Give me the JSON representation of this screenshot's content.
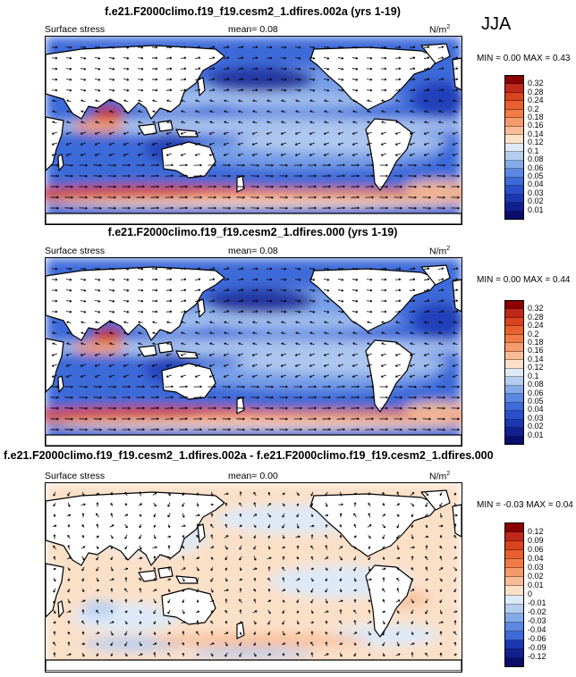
{
  "season": "JJA",
  "units": "N/m",
  "units_sup": "2",
  "panels": [
    {
      "title": "f.e21.F2000climo.f19_f19.cesm2_1.dfires.002a (yrs 1-19)",
      "field": "Surface stress",
      "mean": "mean=  0.08",
      "minmax": "MIN =  0.00 MAX =  0.43",
      "levels": [
        "0.32",
        "0.28",
        "0.24",
        "0.2",
        "0.18",
        "0.16",
        "0.14",
        "0.12",
        "0.1",
        "0.08",
        "0.06",
        "0.05",
        "0.04",
        "0.03",
        "0.02",
        "0.01"
      ],
      "colors": [
        "#8b0000",
        "#c0281a",
        "#d9431f",
        "#e8602f",
        "#f07b46",
        "#f49a6c",
        "#f8bd98",
        "#fbe0c8",
        "#dde9f7",
        "#b4ccf0",
        "#84aaea",
        "#5a88e3",
        "#3e6bd9",
        "#2a4fc9",
        "#1c37b0",
        "#12208f",
        "#0a0d6b"
      ],
      "kind": "magnitude"
    },
    {
      "title": "f.e21.F2000climo.f19_f19.cesm2_1.dfires.000 (yrs 1-19)",
      "field": "Surface stress",
      "mean": "mean=  0.08",
      "minmax": "MIN =  0.00 MAX =  0.44",
      "levels": [
        "0.32",
        "0.28",
        "0.24",
        "0.2",
        "0.18",
        "0.16",
        "0.14",
        "0.12",
        "0.1",
        "0.08",
        "0.06",
        "0.05",
        "0.04",
        "0.03",
        "0.02",
        "0.01"
      ],
      "colors": [
        "#8b0000",
        "#c0281a",
        "#d9431f",
        "#e8602f",
        "#f07b46",
        "#f49a6c",
        "#f8bd98",
        "#fbe0c8",
        "#dde9f7",
        "#b4ccf0",
        "#84aaea",
        "#5a88e3",
        "#3e6bd9",
        "#2a4fc9",
        "#1c37b0",
        "#12208f",
        "#0a0d6b"
      ],
      "kind": "magnitude"
    },
    {
      "title": "f.e21.F2000climo.f19_f19.cesm2_1.dfires.002a - f.e21.F2000climo.f19_f19.cesm2_1.dfires.000",
      "field": "Surface stress",
      "mean": "mean=  0.00",
      "minmax": "MIN = -0.03 MAX =  0.04",
      "levels": [
        "0.12",
        "0.09",
        "0.06",
        "0.04",
        "0.03",
        "0.02",
        "0.01",
        "0",
        "-0.01",
        "-0.02",
        "-0.03",
        "-0.04",
        "-0.06",
        "-0.09",
        "-0.12"
      ],
      "colors": [
        "#8b0000",
        "#c0281a",
        "#d9431f",
        "#e8602f",
        "#f07b46",
        "#f49a6c",
        "#f8bd98",
        "#fbe0c8",
        "#dde9f7",
        "#b4ccf0",
        "#84aaea",
        "#5a88e3",
        "#3e6bd9",
        "#1c37b0",
        "#12208f",
        "#0a0d6b"
      ],
      "kind": "difference"
    }
  ]
}
